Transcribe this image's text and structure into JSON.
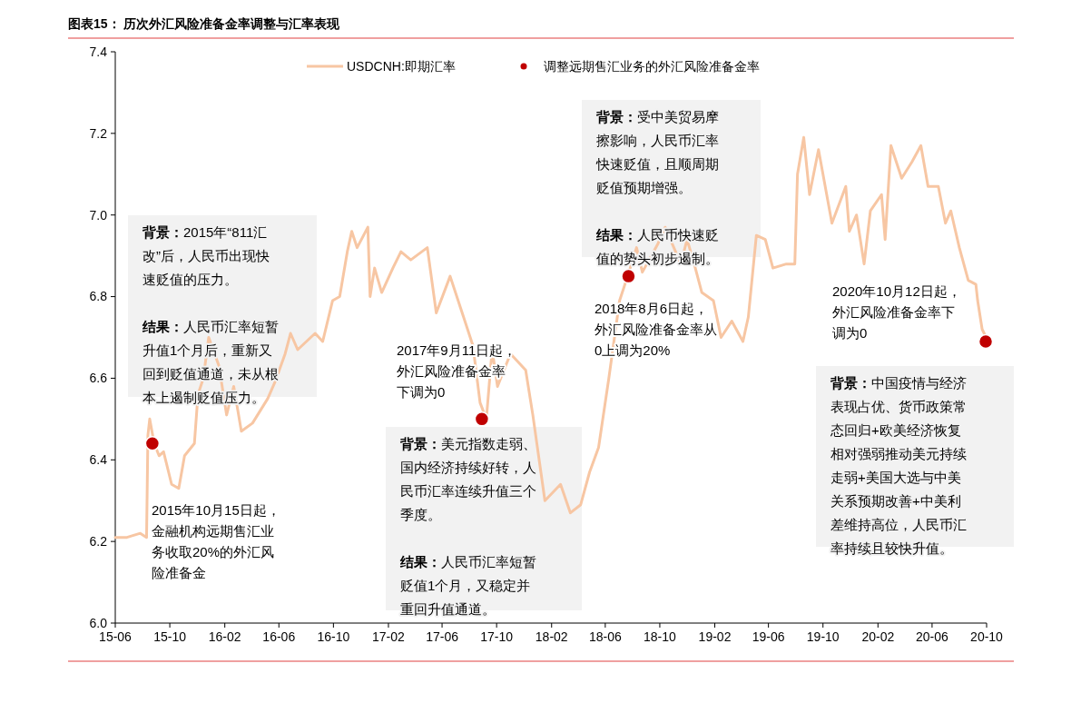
{
  "chart_data": {
    "type": "line",
    "title": "图表15：  历次外汇风险准备金率调整与汇率表现",
    "xlim": [
      "2015-06-01",
      "2020-10-01"
    ],
    "xticks": [
      {
        "value": "2015-06-01",
        "label": "15-06"
      },
      {
        "value": "2015-10-01",
        "label": "15-10"
      },
      {
        "value": "2016-02-01",
        "label": "16-02"
      },
      {
        "value": "2016-06-01",
        "label": "16-06"
      },
      {
        "value": "2016-10-01",
        "label": "16-10"
      },
      {
        "value": "2017-02-01",
        "label": "17-02"
      },
      {
        "value": "2017-06-01",
        "label": "17-06"
      },
      {
        "value": "2017-10-01",
        "label": "17-10"
      },
      {
        "value": "2018-02-01",
        "label": "18-02"
      },
      {
        "value": "2018-06-01",
        "label": "18-06"
      },
      {
        "value": "2018-10-01",
        "label": "18-10"
      },
      {
        "value": "2019-02-01",
        "label": "19-02"
      },
      {
        "value": "2019-06-01",
        "label": "19-06"
      },
      {
        "value": "2019-10-01",
        "label": "19-10"
      },
      {
        "value": "2020-02-01",
        "label": "20-02"
      },
      {
        "value": "2020-06-01",
        "label": "20-06"
      },
      {
        "value": "2020-10-01",
        "label": "20-10"
      }
    ],
    "ylim": [
      6.0,
      7.4
    ],
    "yticks": [
      {
        "value": 6.0,
        "label": "6.0"
      },
      6.2,
      6.4,
      6.6,
      6.8,
      {
        "value": 7.0,
        "label": "7.0"
      },
      7.2,
      7.4
    ],
    "grid": false,
    "legend": "top",
    "series": [
      {
        "name": "USDCNH:即期汇率",
        "color": "#f7c6a3",
        "x": [
          "2015-06-01",
          "2015-06-27",
          "2015-07-27",
          "2015-08-10",
          "2015-08-13",
          "2015-08-17",
          "2015-08-27",
          "2015-09-07",
          "2015-09-17",
          "2015-10-05",
          "2015-10-21",
          "2015-11-03",
          "2015-11-25",
          "2015-12-03",
          "2015-12-15",
          "2015-12-27",
          "2016-01-19",
          "2016-02-05",
          "2016-02-21",
          "2016-03-09",
          "2016-04-03",
          "2016-05-07",
          "2016-05-23",
          "2016-06-15",
          "2016-06-27",
          "2016-07-13",
          "2016-08-21",
          "2016-09-07",
          "2016-09-29",
          "2016-10-15",
          "2016-11-01",
          "2016-11-11",
          "2016-11-23",
          "2016-12-17",
          "2016-12-22",
          "2017-01-01",
          "2017-01-17",
          "2017-02-11",
          "2017-03-01",
          "2017-03-23",
          "2017-04-29",
          "2017-05-19",
          "2017-06-19",
          "2017-07-13",
          "2017-08-09",
          "2017-08-25",
          "2017-09-08",
          "2017-09-21",
          "2017-10-03",
          "2017-11-01",
          "2017-12-05",
          "2017-12-21",
          "2018-01-17",
          "2018-02-21",
          "2018-03-15",
          "2018-04-07",
          "2018-04-27",
          "2018-05-17",
          "2018-06-09",
          "2018-07-03",
          "2018-07-21",
          "2018-08-10",
          "2018-08-23",
          "2018-09-27",
          "2018-10-13",
          "2018-11-17",
          "2018-12-01",
          "2018-12-17",
          "2019-01-03",
          "2019-01-29",
          "2019-02-15",
          "2019-03-11",
          "2019-04-05",
          "2019-04-17",
          "2019-05-05",
          "2019-05-25",
          "2019-06-11",
          "2019-07-11",
          "2019-07-30",
          "2019-08-05",
          "2019-08-19",
          "2019-09-01",
          "2019-09-21",
          "2019-10-21",
          "2019-11-21",
          "2019-11-29",
          "2019-12-15",
          "2020-01-01",
          "2020-01-15",
          "2020-02-09",
          "2020-02-17",
          "2020-03-01",
          "2020-03-25",
          "2020-04-17",
          "2020-05-07",
          "2020-05-23",
          "2020-06-15",
          "2020-07-01",
          "2020-07-13",
          "2020-08-01",
          "2020-08-21",
          "2020-09-07",
          "2020-09-11",
          "2020-09-21",
          "2020-09-30"
        ],
        "values": [
          6.21,
          6.21,
          6.22,
          6.21,
          6.46,
          6.5,
          6.44,
          6.41,
          6.42,
          6.34,
          6.33,
          6.41,
          6.44,
          6.56,
          6.6,
          6.7,
          6.63,
          6.51,
          6.58,
          6.47,
          6.49,
          6.55,
          6.59,
          6.66,
          6.71,
          6.67,
          6.71,
          6.69,
          6.79,
          6.8,
          6.91,
          6.96,
          6.92,
          6.97,
          6.8,
          6.87,
          6.81,
          6.87,
          6.91,
          6.89,
          6.92,
          6.76,
          6.85,
          6.77,
          6.68,
          6.54,
          6.5,
          6.67,
          6.58,
          6.66,
          6.62,
          6.51,
          6.3,
          6.34,
          6.27,
          6.29,
          6.37,
          6.43,
          6.6,
          6.79,
          6.85,
          6.92,
          6.86,
          6.93,
          6.97,
          6.88,
          6.94,
          6.88,
          6.81,
          6.79,
          6.7,
          6.74,
          6.69,
          6.75,
          6.95,
          6.94,
          6.87,
          6.88,
          6.88,
          7.1,
          7.19,
          7.05,
          7.16,
          6.98,
          7.07,
          6.96,
          7.0,
          6.88,
          7.01,
          7.05,
          6.94,
          7.17,
          7.09,
          7.13,
          7.17,
          7.07,
          7.07,
          6.98,
          7.01,
          6.92,
          6.84,
          6.83,
          6.79,
          6.72,
          6.7
        ]
      },
      {
        "name": "调整远期售汇业务的外汇风险准备金率",
        "type": "scatter",
        "color": "#c00000",
        "marker": "circle",
        "x": [
          "2015-08-23",
          "2017-08-29",
          "2018-07-23",
          "2020-09-29"
        ],
        "values": [
          6.44,
          6.5,
          6.85,
          6.69
        ]
      }
    ],
    "annotations": [
      "背景：2015年“811汇改”后，人民币出现快速贬值的压力。",
      "结果：人民币汇率短暂升值1个月后，重新又回到贬值通道，未从根本上遏制贬值压力。",
      "背景：美元指数走弱、国内经济持续好转，人民币汇率连续升值三个季度。",
      "结果：人民币汇率短暂贬值1个月，又稳定并重回升值通道。",
      "背景：受中美贸易摩擦影响，人民币汇率快速贬值，且顺周期贬值预期增强。",
      "结果：人民币快速贬值的势头初步遏制。",
      "背景：中国疫情与经济表现占优、货币政策常态回归+欧美经济恢复相对强弱推动美元持续走弱+美国大选与中美关系预期改善+中美利差维持高位，人民币汇率持续且较快升值。",
      "2015年10月15日起，金融机构远期售汇业务收取20%的外汇风险准备金",
      "2017年9月11日起，外汇风险准备金率下调为0",
      "2018年8月6日起，外汇风险准备金率从0上调为20%",
      "2020年10月12日起，外汇风险准备金率下调为0"
    ]
  }
}
